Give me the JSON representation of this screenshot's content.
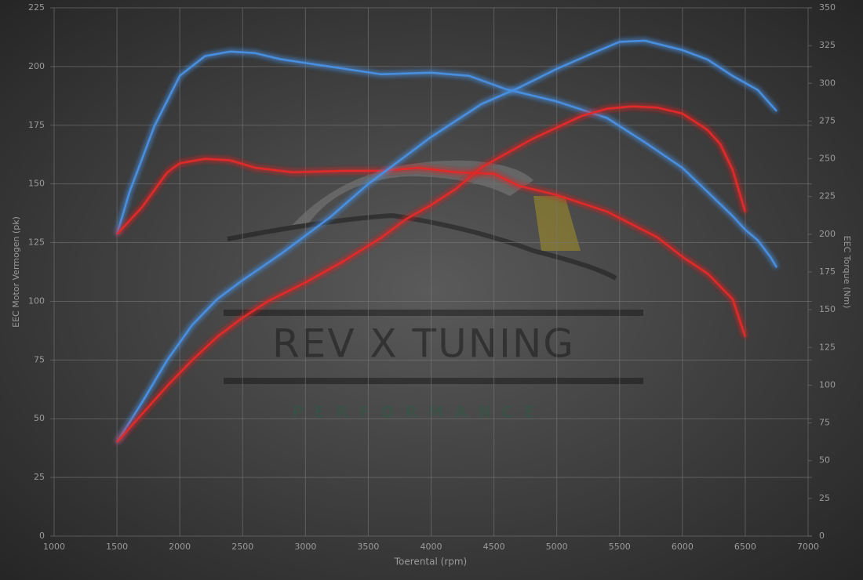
{
  "chart_data": {
    "type": "line",
    "xlabel": "Toerental (rpm)",
    "ylabel": "EEC Motor Vermogen (pk)",
    "y2label": "EEC Torque (Nm)",
    "watermark": [
      "REV X TUNING",
      "PERFORMANCE"
    ],
    "xlim": [
      1000,
      7000
    ],
    "xticks": [
      1000,
      1500,
      2000,
      2500,
      3000,
      3500,
      4000,
      4500,
      5000,
      5500,
      6000,
      6500,
      7000
    ],
    "ylim": [
      0,
      225
    ],
    "yticks": [
      0,
      25,
      50,
      75,
      100,
      125,
      150,
      175,
      200,
      225
    ],
    "y2lim": [
      0,
      350
    ],
    "y2ticks": [
      0,
      25,
      50,
      75,
      100,
      125,
      150,
      175,
      200,
      225,
      250,
      275,
      300,
      325,
      350
    ],
    "grid": true,
    "series": [
      {
        "color": "#4a8fe0",
        "axis": "y2",
        "x": [
          1500,
          1600,
          1800,
          2000,
          2200,
          2400,
          2600,
          2800,
          3200,
          3600,
          4000,
          4300,
          4600,
          5000,
          5400,
          5700,
          6000,
          6200,
          6400,
          6500,
          6600,
          6700,
          6750
        ],
        "values": [
          200,
          228,
          272,
          305,
          318,
          321,
          320,
          316,
          311,
          306,
          307,
          305,
          296,
          288,
          277,
          261,
          244,
          228,
          212,
          203,
          196,
          185,
          178
        ]
      },
      {
        "color": "#e02a2a",
        "axis": "y2",
        "x": [
          1500,
          1700,
          1900,
          2000,
          2200,
          2400,
          2600,
          2900,
          3300,
          3600,
          3900,
          4200,
          4500,
          4700,
          5000,
          5400,
          5800,
          6000,
          6200,
          6400,
          6500
        ],
        "values": [
          200,
          218,
          241,
          247,
          250,
          249,
          244,
          241,
          242,
          242,
          244,
          241,
          240,
          232,
          226,
          215,
          198,
          185,
          174,
          157,
          132
        ]
      },
      {
        "color": "#4a8fe0",
        "x": [
          1500,
          1700,
          1900,
          2100,
          2300,
          2500,
          2800,
          3000,
          3200,
          3500,
          3800,
          4000,
          4200,
          4400,
          4700,
          5000,
          5300,
          5500,
          5700,
          6000,
          6200,
          6400,
          6600,
          6700,
          6750
        ],
        "values": [
          40,
          57,
          75,
          90,
          101,
          109,
          120,
          128,
          136,
          150,
          162,
          170,
          177,
          184,
          191,
          199,
          206,
          210.5,
          211,
          207,
          203,
          196,
          190,
          184,
          181
        ]
      },
      {
        "color": "#e02a2a",
        "x": [
          1500,
          1700,
          1900,
          2100,
          2300,
          2500,
          2700,
          3000,
          3300,
          3600,
          3800,
          4000,
          4200,
          4400,
          4600,
          4800,
          5000,
          5200,
          5400,
          5600,
          5800,
          6000,
          6200,
          6300,
          6400,
          6500
        ],
        "values": [
          40,
          52,
          64,
          75,
          85,
          93,
          100,
          108,
          117,
          127,
          135,
          141,
          148,
          157,
          163,
          169,
          174,
          179,
          182,
          183,
          182.5,
          180,
          173,
          167,
          156,
          138
        ]
      }
    ]
  }
}
